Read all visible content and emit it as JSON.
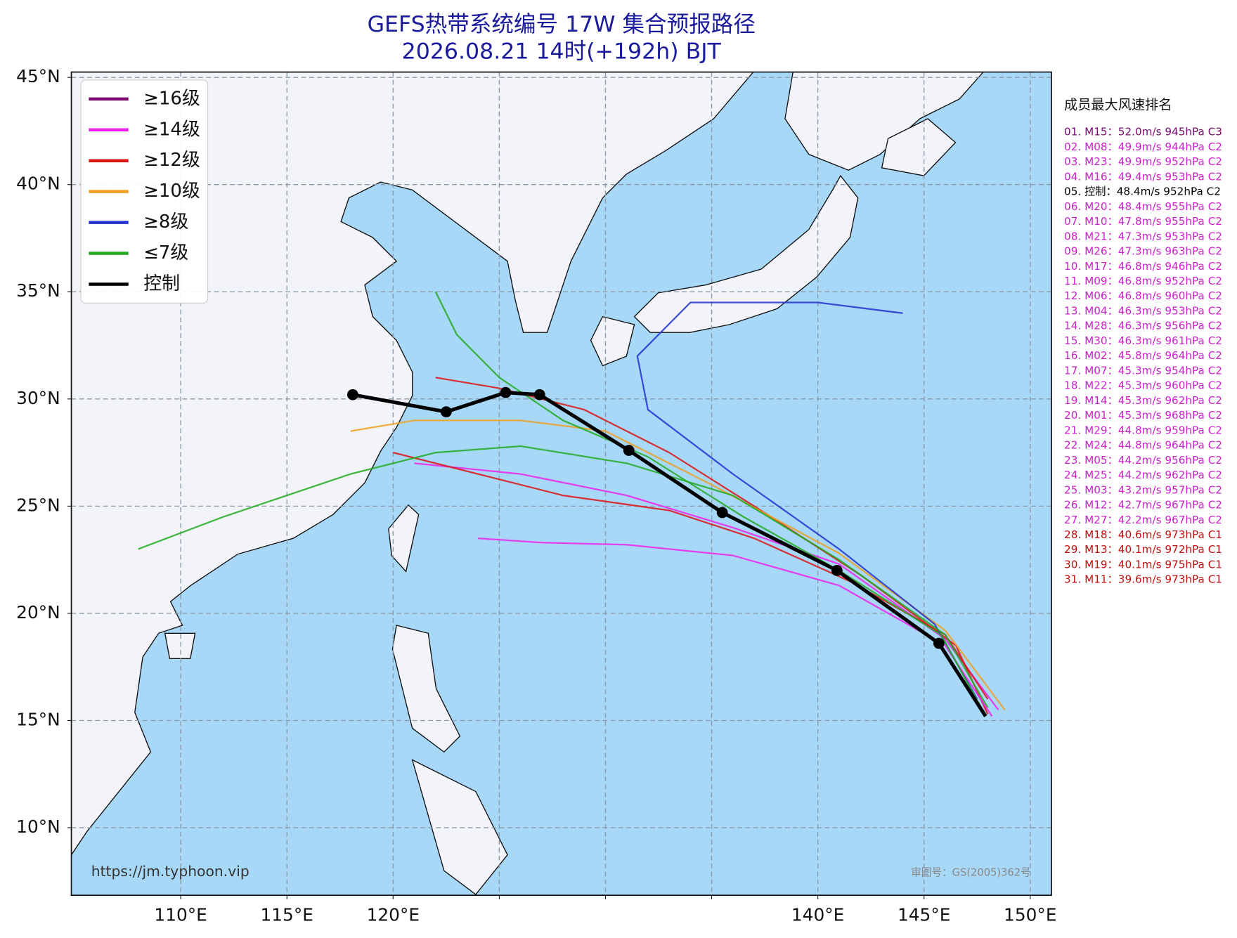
{
  "chart_data": {
    "type": "track-map",
    "title": "GEFS热带系统编号 17W 集合预报路径",
    "subtitle": "2026.08.21 14时(+192h) BJT",
    "xlim": [
      104.85,
      151.0
    ],
    "ylim": [
      6.85,
      45.25
    ],
    "xticks": [
      {
        "value": 110,
        "label": "110°E"
      },
      {
        "value": 115,
        "label": "115°E"
      },
      {
        "value": 120,
        "label": "120°E"
      },
      {
        "value": 125,
        "label": ""
      },
      {
        "value": 130,
        "label": ""
      },
      {
        "value": 135,
        "label": ""
      },
      {
        "value": 140,
        "label": "140°E"
      },
      {
        "value": 145,
        "label": "145°E"
      },
      {
        "value": 150,
        "label": "150°E"
      }
    ],
    "yticks": [
      {
        "value": 45,
        "label": "45°N"
      },
      {
        "value": 40,
        "label": "40°N"
      },
      {
        "value": 35,
        "label": "35°N"
      },
      {
        "value": 30,
        "label": "30°N"
      },
      {
        "value": 25,
        "label": "25°N"
      },
      {
        "value": 20,
        "label": "20°N"
      },
      {
        "value": 15,
        "label": "15°N"
      },
      {
        "value": 10,
        "label": "10°N"
      }
    ],
    "grid": true,
    "legend": [
      {
        "label": "≥16级",
        "color": "#7a0a6e"
      },
      {
        "label": "≥14级",
        "color": "#ee22ee"
      },
      {
        "label": "≥12级",
        "color": "#dd1515"
      },
      {
        "label": "≥10级",
        "color": "#f0a020"
      },
      {
        "label": "≥8级",
        "color": "#2233cc"
      },
      {
        "label": "≤7级",
        "color": "#22aa22"
      },
      {
        "label": "控制",
        "color": "#000000"
      }
    ],
    "series": [
      {
        "color": "#ee22ee",
        "x": [
          148.5,
          146.0,
          141.0,
          136.0,
          131.0,
          126.0,
          121.0
        ],
        "y": [
          15.5,
          18.8,
          22.3,
          24.0,
          25.5,
          26.5,
          27.0
        ]
      },
      {
        "color": "#dd1515",
        "x": [
          148.0,
          146.0,
          141.5,
          137.0,
          133.0,
          128.0,
          124.0,
          120.0
        ],
        "y": [
          16.0,
          19.0,
          21.5,
          23.5,
          24.8,
          25.5,
          26.5,
          27.5
        ]
      },
      {
        "color": "#dd1515",
        "x": [
          148.0,
          146.5,
          142.0,
          137.0,
          133.0,
          129.0,
          125.0,
          122.0
        ],
        "y": [
          15.3,
          18.5,
          21.8,
          25.0,
          27.5,
          29.5,
          30.5,
          31.0
        ]
      },
      {
        "color": "#f0a020",
        "x": [
          148.8,
          146.0,
          141.0,
          135.0,
          130.0,
          126.0,
          121.0,
          118.0
        ],
        "y": [
          15.5,
          19.2,
          22.8,
          26.0,
          28.5,
          29.0,
          29.0,
          28.5
        ]
      },
      {
        "color": "#2233cc",
        "x": [
          147.5,
          145.5,
          141.0,
          136.0,
          132.0,
          131.5,
          134.0,
          140.0,
          144.0
        ],
        "y": [
          16.0,
          19.5,
          23.0,
          26.5,
          29.5,
          32.0,
          34.5,
          34.5,
          34.0
        ]
      },
      {
        "color": "#22aa22",
        "x": [
          148.0,
          146.0,
          141.0,
          136.0,
          131.0,
          126.0,
          122.0,
          118.0,
          115.0,
          112.0,
          108.0
        ],
        "y": [
          15.6,
          19.0,
          22.5,
          25.5,
          27.0,
          27.8,
          27.5,
          26.5,
          25.5,
          24.5,
          23.0
        ]
      },
      {
        "color": "#ee22ee",
        "x": [
          148.2,
          146.0,
          141.0,
          136.0,
          131.0,
          127.0,
          124.0
        ],
        "y": [
          15.2,
          18.5,
          21.3,
          22.7,
          23.2,
          23.3,
          23.5
        ]
      },
      {
        "color": "#22aa22",
        "x": [
          147.8,
          145.8,
          141.0,
          136.5,
          132.0,
          128.0,
          125.0,
          123.0,
          122.0
        ],
        "y": [
          15.4,
          19.0,
          22.0,
          24.5,
          27.3,
          29.0,
          31.0,
          33.0,
          35.0
        ]
      }
    ],
    "control_track": {
      "color": "#000000",
      "x": [
        147.9,
        145.7,
        140.9,
        135.5,
        131.1,
        126.9,
        125.3,
        122.5,
        118.1
      ],
      "y": [
        15.2,
        18.6,
        22.0,
        24.7,
        27.6,
        30.2,
        30.3,
        29.4,
        30.2
      ]
    },
    "ranking": {
      "title": "成员最大风速排名",
      "items": [
        {
          "text": "01. M15：52.0m/s 945hPa C3",
          "color": "#7a0a6e"
        },
        {
          "text": "02. M08：49.9m/s 944hPa C2",
          "color": "#cc22cc"
        },
        {
          "text": "03. M23：49.9m/s 952hPa C2",
          "color": "#cc22cc"
        },
        {
          "text": "04. M16：49.4m/s 953hPa C2",
          "color": "#cc22cc"
        },
        {
          "text": "05. 控制：48.4m/s 952hPa C2",
          "color": "#000000"
        },
        {
          "text": "06. M20：48.4m/s 955hPa C2",
          "color": "#cc22cc"
        },
        {
          "text": "07. M10：47.8m/s 955hPa C2",
          "color": "#cc22cc"
        },
        {
          "text": "08. M21：47.3m/s 953hPa C2",
          "color": "#cc22cc"
        },
        {
          "text": "09. M26：47.3m/s 963hPa C2",
          "color": "#cc22cc"
        },
        {
          "text": "10. M17：46.8m/s 946hPa C2",
          "color": "#cc22cc"
        },
        {
          "text": "11. M09：46.8m/s 952hPa C2",
          "color": "#cc22cc"
        },
        {
          "text": "12. M06：46.8m/s 960hPa C2",
          "color": "#cc22cc"
        },
        {
          "text": "13. M04：46.3m/s 953hPa C2",
          "color": "#cc22cc"
        },
        {
          "text": "14. M28：46.3m/s 956hPa C2",
          "color": "#cc22cc"
        },
        {
          "text": "15. M30：46.3m/s 961hPa C2",
          "color": "#cc22cc"
        },
        {
          "text": "16. M02：45.8m/s 964hPa C2",
          "color": "#cc22cc"
        },
        {
          "text": "17. M07：45.3m/s 954hPa C2",
          "color": "#cc22cc"
        },
        {
          "text": "18. M22：45.3m/s 960hPa C2",
          "color": "#cc22cc"
        },
        {
          "text": "19. M14：45.3m/s 962hPa C2",
          "color": "#cc22cc"
        },
        {
          "text": "20. M01：45.3m/s 968hPa C2",
          "color": "#cc22cc"
        },
        {
          "text": "21. M29：44.8m/s 959hPa C2",
          "color": "#cc22cc"
        },
        {
          "text": "22. M24：44.8m/s 964hPa C2",
          "color": "#cc22cc"
        },
        {
          "text": "23. M05：44.2m/s 956hPa C2",
          "color": "#cc22cc"
        },
        {
          "text": "24. M25：44.2m/s 962hPa C2",
          "color": "#cc22cc"
        },
        {
          "text": "25. M03：43.2m/s 957hPa C2",
          "color": "#cc22cc"
        },
        {
          "text": "26. M12：42.7m/s 967hPa C2",
          "color": "#cc22cc"
        },
        {
          "text": "27. M27：42.2m/s 967hPa C2",
          "color": "#cc22cc"
        },
        {
          "text": "28. M18：40.6m/s 973hPa C1",
          "color": "#c01010"
        },
        {
          "text": "29. M13：40.1m/s 972hPa C1",
          "color": "#c01010"
        },
        {
          "text": "30. M19：40.1m/s 975hPa C1",
          "color": "#c01010"
        },
        {
          "text": "31. M11：39.6m/s 973hPa C1",
          "color": "#c01010"
        }
      ]
    },
    "source": "https://jm.typhoon.vip",
    "approval": "审图号：GS(2005)362号"
  }
}
